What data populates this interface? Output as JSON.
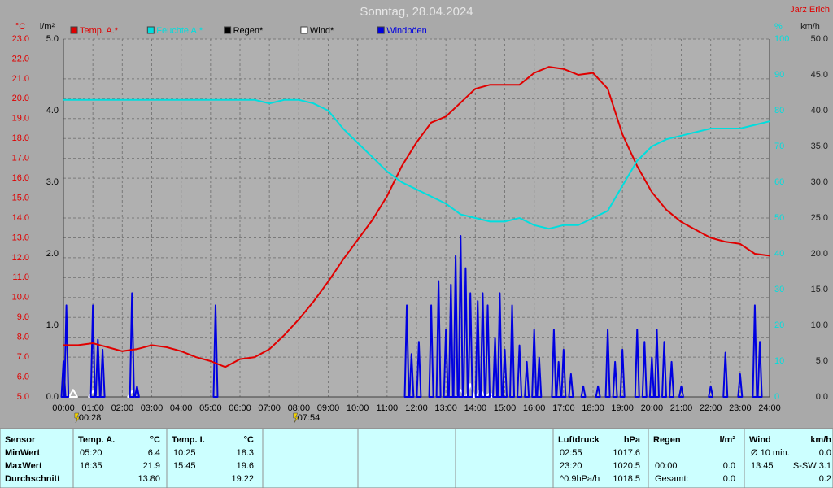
{
  "chart_data": {
    "type": "line",
    "title": "Sonntag, 28.04.2024",
    "author": "Jarz Erich",
    "xlim": [
      0,
      24
    ],
    "xticks": [
      {
        "value": 0,
        "label": "00:00"
      },
      {
        "value": 1,
        "label": "01:00"
      },
      {
        "value": 2,
        "label": "02:00"
      },
      {
        "value": 3,
        "label": "03:00"
      },
      {
        "value": 4,
        "label": "04:00"
      },
      {
        "value": 5,
        "label": "05:00"
      },
      {
        "value": 6,
        "label": "06:00"
      },
      {
        "value": 7,
        "label": "07:00"
      },
      {
        "value": 8,
        "label": "08:00"
      },
      {
        "value": 9,
        "label": "09:00"
      },
      {
        "value": 10,
        "label": "10:00"
      },
      {
        "value": 11,
        "label": "11:00"
      },
      {
        "value": 12,
        "label": "12:00"
      },
      {
        "value": 13,
        "label": "13:00"
      },
      {
        "value": 14,
        "label": "14:00"
      },
      {
        "value": 15,
        "label": "15:00"
      },
      {
        "value": 16,
        "label": "16:00"
      },
      {
        "value": 17,
        "label": "17:00"
      },
      {
        "value": 18,
        "label": "18:00"
      },
      {
        "value": 19,
        "label": "19:00"
      },
      {
        "value": 20,
        "label": "20:00"
      },
      {
        "value": 21,
        "label": "21:00"
      },
      {
        "value": 22,
        "label": "22:00"
      },
      {
        "value": 23,
        "label": "23:00"
      },
      {
        "value": 24,
        "label": "24:00"
      }
    ],
    "grid": true,
    "axes": {
      "temp": {
        "label": "°C",
        "color": "#e00000",
        "side": "left",
        "lim": [
          5,
          23
        ],
        "ticks": [
          {
            "value": 5,
            "label": "5.0"
          },
          {
            "value": 6,
            "label": "6.0"
          },
          {
            "value": 7,
            "label": "7.0"
          },
          {
            "value": 8,
            "label": "8.0"
          },
          {
            "value": 9,
            "label": "9.0"
          },
          {
            "value": 10,
            "label": "10.0"
          },
          {
            "value": 11,
            "label": "11.0"
          },
          {
            "value": 12,
            "label": "12.0"
          },
          {
            "value": 13,
            "label": "13.0"
          },
          {
            "value": 14,
            "label": "14.0"
          },
          {
            "value": 15,
            "label": "15.0"
          },
          {
            "value": 16,
            "label": "16.0"
          },
          {
            "value": 17,
            "label": "17.0"
          },
          {
            "value": 18,
            "label": "18.0"
          },
          {
            "value": 19,
            "label": "19.0"
          },
          {
            "value": 20,
            "label": "20.0"
          },
          {
            "value": 21,
            "label": "21.0"
          },
          {
            "value": 22,
            "label": "22.0"
          },
          {
            "value": 23,
            "label": "23.0"
          }
        ]
      },
      "rain": {
        "label": "l/m²",
        "color": "#000000",
        "side": "left",
        "lim": [
          0,
          5
        ],
        "ticks": [
          {
            "value": 0,
            "label": "0.0"
          },
          {
            "value": 1,
            "label": "1.0"
          },
          {
            "value": 2,
            "label": "2.0"
          },
          {
            "value": 3,
            "label": "3.0"
          },
          {
            "value": 4,
            "label": "4.0"
          },
          {
            "value": 5,
            "label": "5.0"
          }
        ]
      },
      "humidity": {
        "label": "%",
        "color": "#00dede",
        "side": "right",
        "lim": [
          0,
          100
        ],
        "ticks": [
          0,
          10,
          20,
          30,
          40,
          50,
          60,
          70,
          80,
          90,
          100
        ]
      },
      "wind": {
        "label": "km/h",
        "color": "#202020",
        "side": "right",
        "lim": [
          0,
          50
        ],
        "ticks": [
          {
            "value": 0,
            "label": "0.0"
          },
          {
            "value": 5,
            "label": "5.0"
          },
          {
            "value": 10,
            "label": "10.0"
          },
          {
            "value": 15,
            "label": "15.0"
          },
          {
            "value": 20,
            "label": "20.0"
          },
          {
            "value": 25,
            "label": "25.0"
          },
          {
            "value": 30,
            "label": "30.0"
          },
          {
            "value": 35,
            "label": "35.0"
          },
          {
            "value": 40,
            "label": "40.0"
          },
          {
            "value": 45,
            "label": "45.0"
          },
          {
            "value": 50,
            "label": "50.0"
          }
        ]
      }
    },
    "series": [
      {
        "name": "Temp. A.*",
        "color": "#e00000",
        "axis": "temp",
        "style": "line",
        "x": [
          0,
          0.5,
          1,
          1.5,
          2,
          2.5,
          3,
          3.5,
          4,
          4.5,
          5,
          5.5,
          6,
          6.5,
          7,
          7.5,
          8,
          8.5,
          9,
          9.5,
          10,
          10.5,
          11,
          11.5,
          12,
          12.5,
          13,
          13.5,
          14,
          14.5,
          15,
          15.5,
          16,
          16.5,
          17,
          17.5,
          18,
          18.5,
          19,
          19.5,
          20,
          20.5,
          21,
          21.5,
          22,
          22.5,
          23,
          23.5,
          24
        ],
        "values": [
          7.6,
          7.6,
          7.7,
          7.5,
          7.3,
          7.4,
          7.6,
          7.5,
          7.3,
          7.0,
          6.8,
          6.5,
          6.9,
          7.0,
          7.4,
          8.1,
          8.9,
          9.8,
          10.8,
          11.9,
          12.9,
          13.9,
          15.1,
          16.6,
          17.8,
          18.8,
          19.1,
          19.8,
          20.5,
          20.7,
          20.7,
          20.7,
          21.3,
          21.6,
          21.5,
          21.2,
          21.3,
          20.5,
          18.2,
          16.6,
          15.3,
          14.4,
          13.8,
          13.4,
          13.0,
          12.8,
          12.7,
          12.2,
          12.1
        ]
      },
      {
        "name": "Feuchte A.*",
        "color": "#00dede",
        "axis": "humidity",
        "style": "line",
        "x": [
          0,
          0.5,
          1,
          1.5,
          2,
          2.5,
          3,
          3.5,
          4,
          4.5,
          5,
          5.5,
          6,
          6.5,
          7,
          7.5,
          8,
          8.5,
          9,
          9.5,
          10,
          10.5,
          11,
          11.5,
          12,
          12.5,
          13,
          13.5,
          14,
          14.5,
          15,
          15.5,
          16,
          16.5,
          17,
          17.5,
          18,
          18.5,
          19,
          19.5,
          20,
          20.5,
          21,
          21.5,
          22,
          22.5,
          23,
          23.5,
          24
        ],
        "values": [
          83,
          83,
          83,
          83,
          83,
          83,
          83,
          83,
          83,
          83,
          83,
          83,
          83,
          83,
          82,
          83,
          83,
          82,
          80,
          75,
          71,
          67,
          63,
          60,
          58,
          56,
          54,
          51,
          50,
          49,
          49,
          50,
          48,
          47,
          48,
          48,
          50,
          52,
          59,
          66,
          70,
          72,
          73,
          74,
          75,
          75,
          75,
          76,
          77
        ]
      },
      {
        "name": "Regen*",
        "color": "#000000",
        "axis": "rain",
        "style": "spike"
      },
      {
        "name": "Wind*",
        "color": "#ffffff",
        "axis": "wind",
        "style": "spike",
        "x": [
          0.33,
          1.0,
          2.33,
          13.5,
          13.83,
          14.17,
          14.5
        ],
        "values": [
          1.0,
          0.8,
          0.8,
          1.0,
          1.8,
          1.2,
          0.6
        ]
      },
      {
        "name": "Windböen",
        "color": "#0000e0",
        "axis": "wind",
        "style": "spike",
        "x": [
          0.0,
          0.1,
          1.0,
          1.17,
          1.33,
          2.33,
          2.5,
          5.17,
          11.67,
          11.83,
          12.08,
          12.5,
          12.75,
          13.0,
          13.17,
          13.33,
          13.5,
          13.67,
          13.83,
          14.08,
          14.25,
          14.42,
          14.67,
          14.83,
          15.0,
          15.25,
          15.5,
          15.75,
          16.0,
          16.17,
          16.67,
          16.83,
          17.0,
          17.25,
          17.67,
          18.17,
          18.5,
          18.75,
          19.0,
          19.5,
          19.75,
          20.0,
          20.17,
          20.42,
          20.67,
          21.0,
          22.0,
          22.5,
          23.0,
          23.5,
          23.67
        ],
        "values": [
          5.0,
          12.8,
          12.8,
          8.0,
          6.6,
          14.5,
          1.5,
          12.8,
          12.8,
          6.0,
          7.7,
          12.8,
          16.2,
          9.4,
          15.7,
          19.7,
          22.5,
          18.0,
          14.5,
          13.4,
          14.5,
          12.8,
          8.3,
          14.5,
          6.6,
          12.8,
          7.2,
          4.9,
          9.4,
          5.5,
          9.4,
          4.9,
          6.6,
          3.2,
          1.5,
          1.5,
          9.4,
          4.9,
          6.6,
          9.4,
          7.7,
          5.5,
          9.4,
          7.7,
          4.9,
          1.5,
          1.5,
          6.2,
          3.2,
          12.8,
          7.7
        ]
      }
    ],
    "annotations": [
      {
        "x": 0.467,
        "label": "00:28"
      },
      {
        "x": 7.9,
        "label": "07:54"
      }
    ]
  },
  "stats": {
    "header": "Sensor",
    "row_labels": [
      "MinWert",
      "MaxWert",
      "Durchschnitt"
    ],
    "columns": [
      {
        "left": 90,
        "title": "Temp. A.",
        "unit": "°C",
        "cells": [
          [
            "05:20",
            "6.4"
          ],
          [
            "16:35",
            "21.9"
          ],
          [
            null,
            "13.80"
          ]
        ]
      },
      {
        "left": 205,
        "title": "Temp. I.",
        "unit": "°C",
        "cells": [
          [
            "10:25",
            "18.3"
          ],
          [
            "15:45",
            "19.6"
          ],
          [
            null,
            "19.22"
          ]
        ]
      },
      {
        "left": 680,
        "title": "Luftdruck",
        "unit": "hPa",
        "cells": [
          [
            "02:55",
            "1017.6"
          ],
          [
            "23:20",
            "1020.5"
          ],
          [
            "^0.9hPa/h",
            "1018.5"
          ]
        ]
      },
      {
        "left": 797,
        "title": "Regen",
        "unit": "l/m²",
        "cells": [
          [
            null,
            null
          ],
          [
            "00:00",
            "0.0"
          ],
          [
            "Gesamt:",
            "0.0"
          ]
        ]
      },
      {
        "left": 915,
        "title": "Wind",
        "unit": "km/h",
        "cells": [
          [
            "Ø 10 min.",
            "0.0"
          ],
          [
            "13:45",
            "S-SW 3.1"
          ],
          [
            null,
            "0.2"
          ]
        ]
      }
    ]
  }
}
